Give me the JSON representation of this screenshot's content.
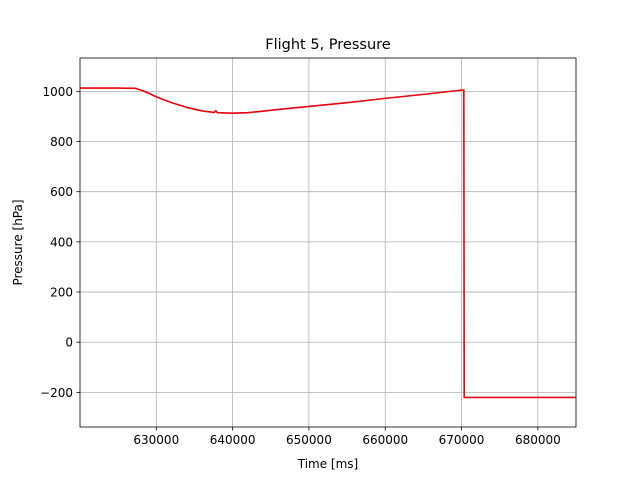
{
  "chart_data": {
    "type": "line",
    "title": "Flight 5, Pressure",
    "xlabel": "Time [ms]",
    "ylabel": "Pressure [hPa]",
    "xlim": [
      620000,
      685000
    ],
    "ylim": [
      -338,
      1133
    ],
    "grid": true,
    "x_ticks": [
      630000,
      640000,
      650000,
      660000,
      670000,
      680000
    ],
    "x_tick_labels": [
      "630000",
      "640000",
      "650000",
      "660000",
      "670000",
      "680000"
    ],
    "y_ticks": [
      -200,
      0,
      200,
      400,
      600,
      800,
      1000
    ],
    "y_tick_labels": [
      "−200",
      "0",
      "200",
      "400",
      "600",
      "800",
      "1000"
    ],
    "series": [
      {
        "color": "#e8000b",
        "x": [
          620000,
          625000,
          627300,
          628000,
          629000,
          630000,
          632000,
          634000,
          636000,
          637600,
          637800,
          638000,
          640000,
          642000,
          644000,
          646000,
          650000,
          655000,
          660000,
          665000,
          670300,
          670350,
          670400,
          685000
        ],
        "y": [
          1013,
          1013,
          1012,
          1005,
          993,
          978,
          955,
          936,
          922,
          916,
          923,
          915,
          913,
          915,
          921,
          928,
          940,
          955,
          972,
          988,
          1006,
          -220,
          -220,
          -220
        ]
      }
    ]
  }
}
